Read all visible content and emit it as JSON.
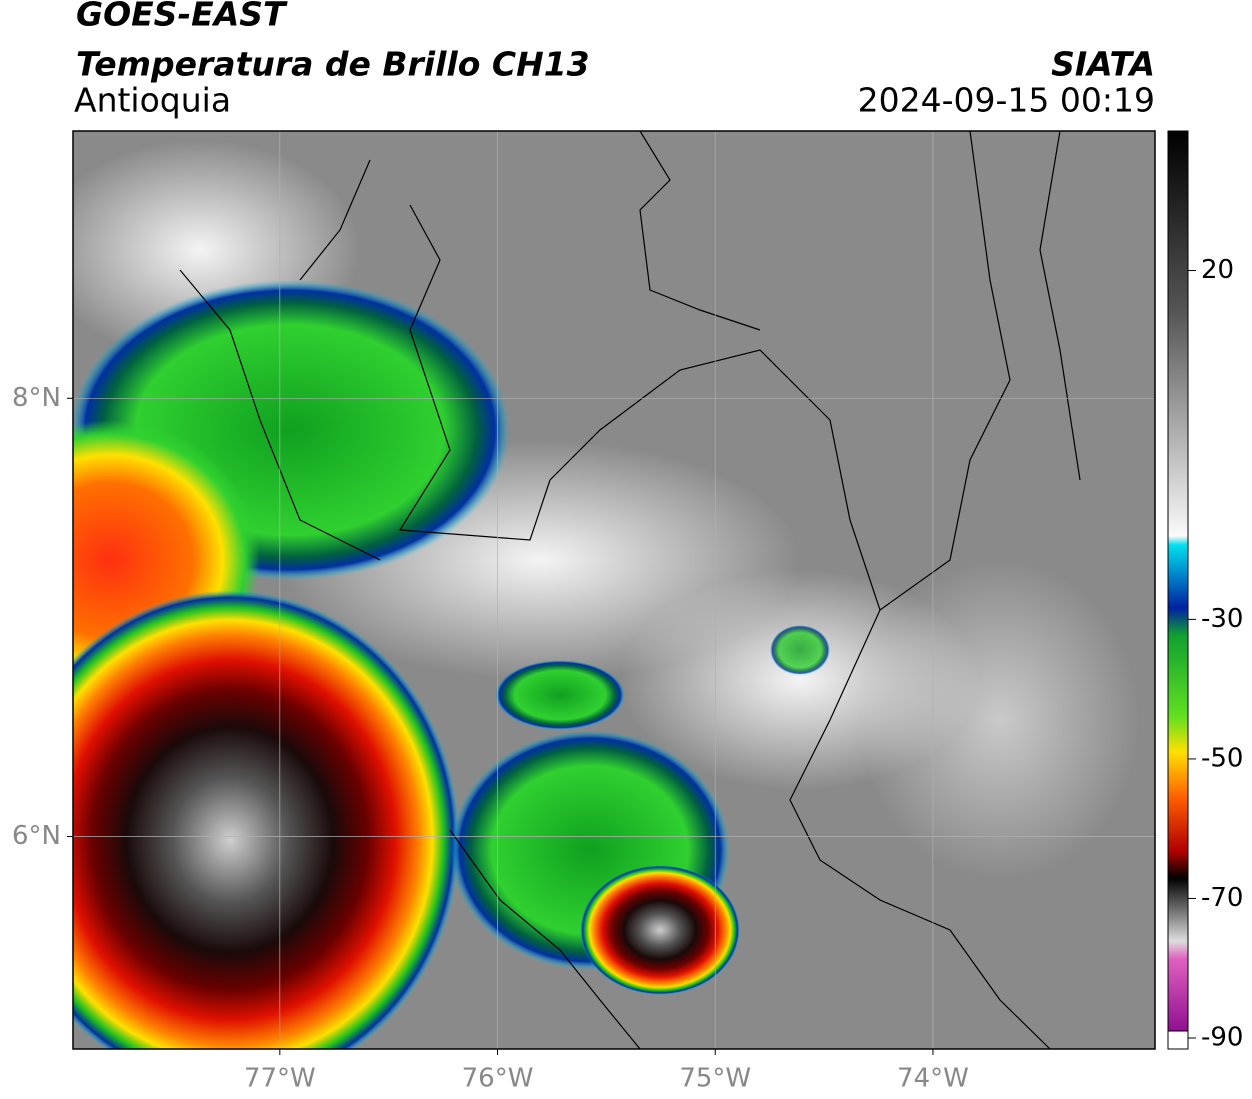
{
  "header": {
    "title": "GOES-EAST",
    "subtitle": "Temperatura de Brillo CH13",
    "region": "Antioquia",
    "source": "SIATA",
    "timestamp": "2024-09-15 00:19"
  },
  "map": {
    "xlim": [
      -77.95,
      -72.98
    ],
    "ylim": [
      5.03,
      9.22
    ],
    "xticks": [
      {
        "value": -77,
        "label": "77°W"
      },
      {
        "value": -76,
        "label": "76°W"
      },
      {
        "value": -75,
        "label": "75°W"
      },
      {
        "value": -74,
        "label": "74°W"
      }
    ],
    "yticks": [
      {
        "value": 6,
        "label": "6°N"
      },
      {
        "value": 8,
        "label": "8°N"
      }
    ]
  },
  "colorbar": {
    "lim": [
      -90,
      40
    ],
    "ticks": [
      20,
      -30,
      -50,
      -70,
      -90
    ]
  }
}
